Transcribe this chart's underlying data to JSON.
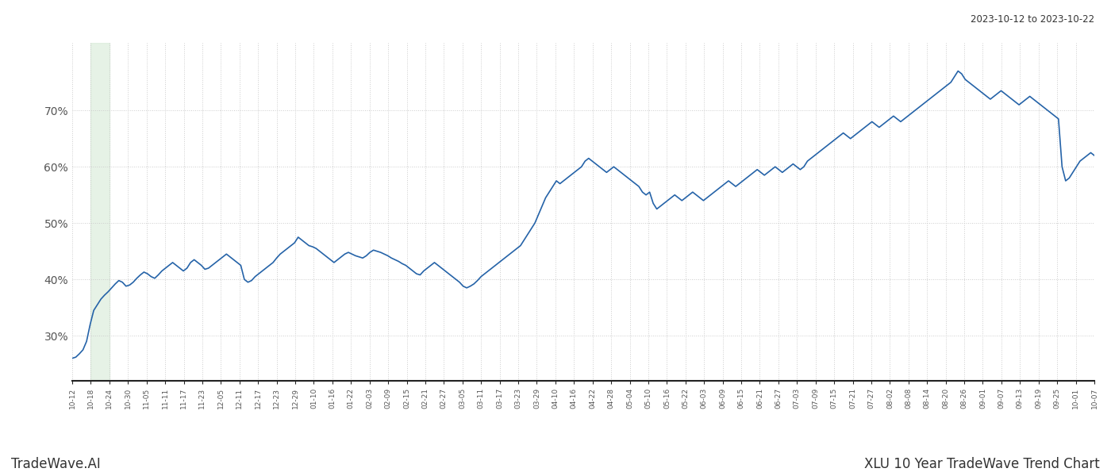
{
  "title_top_right": "2023-10-12 to 2023-10-22",
  "title_bottom_left": "TradeWave.AI",
  "title_bottom_right": "XLU 10 Year TradeWave Trend Chart",
  "line_color": "#2563a8",
  "line_width": 1.2,
  "highlight_color": "#d6ead6",
  "highlight_alpha": 0.6,
  "background_color": "#ffffff",
  "grid_color": "#cccccc",
  "ylim_min": 22,
  "ylim_max": 82,
  "yticks": [
    30,
    40,
    50,
    60,
    70
  ],
  "xlabel_fontsize": 6.5,
  "ylabel_fontsize": 10,
  "x_labels": [
    "10-12",
    "10-18",
    "10-24",
    "10-30",
    "11-05",
    "11-11",
    "11-17",
    "11-23",
    "12-05",
    "12-11",
    "12-17",
    "12-23",
    "12-29",
    "01-10",
    "01-16",
    "01-22",
    "02-03",
    "02-09",
    "02-15",
    "02-21",
    "02-27",
    "03-05",
    "03-11",
    "03-17",
    "03-23",
    "03-29",
    "04-10",
    "04-16",
    "04-22",
    "04-28",
    "05-04",
    "05-10",
    "05-16",
    "05-22",
    "06-03",
    "06-09",
    "06-15",
    "06-21",
    "06-27",
    "07-03",
    "07-09",
    "07-15",
    "07-21",
    "07-27",
    "08-02",
    "08-08",
    "08-14",
    "08-20",
    "08-26",
    "09-01",
    "09-07",
    "09-13",
    "09-19",
    "09-25",
    "10-01",
    "10-07"
  ],
  "highlight_label_start": "10-18",
  "highlight_label_end": "10-24",
  "y_values": [
    26.0,
    26.2,
    26.8,
    27.5,
    29.0,
    32.0,
    34.5,
    35.5,
    36.5,
    37.2,
    37.8,
    38.5,
    39.2,
    39.8,
    39.5,
    38.8,
    39.0,
    39.5,
    40.2,
    40.8,
    41.3,
    41.0,
    40.5,
    40.2,
    40.8,
    41.5,
    42.0,
    42.5,
    43.0,
    42.5,
    42.0,
    41.5,
    42.0,
    43.0,
    43.5,
    43.0,
    42.5,
    41.8,
    42.0,
    42.5,
    43.0,
    43.5,
    44.0,
    44.5,
    44.0,
    43.5,
    43.0,
    42.5,
    40.0,
    39.5,
    39.8,
    40.5,
    41.0,
    41.5,
    42.0,
    42.5,
    43.0,
    43.8,
    44.5,
    45.0,
    45.5,
    46.0,
    46.5,
    47.5,
    47.0,
    46.5,
    46.0,
    45.8,
    45.5,
    45.0,
    44.5,
    44.0,
    43.5,
    43.0,
    43.5,
    44.0,
    44.5,
    44.8,
    44.5,
    44.2,
    44.0,
    43.8,
    44.2,
    44.8,
    45.2,
    45.0,
    44.8,
    44.5,
    44.2,
    43.8,
    43.5,
    43.2,
    42.8,
    42.5,
    42.0,
    41.5,
    41.0,
    40.8,
    41.5,
    42.0,
    42.5,
    43.0,
    42.5,
    42.0,
    41.5,
    41.0,
    40.5,
    40.0,
    39.5,
    38.8,
    38.5,
    38.8,
    39.2,
    39.8,
    40.5,
    41.0,
    41.5,
    42.0,
    42.5,
    43.0,
    43.5,
    44.0,
    44.5,
    45.0,
    45.5,
    46.0,
    47.0,
    48.0,
    49.0,
    50.0,
    51.5,
    53.0,
    54.5,
    55.5,
    56.5,
    57.5,
    57.0,
    57.5,
    58.0,
    58.5,
    59.0,
    59.5,
    60.0,
    61.0,
    61.5,
    61.0,
    60.5,
    60.0,
    59.5,
    59.0,
    59.5,
    60.0,
    59.5,
    59.0,
    58.5,
    58.0,
    57.5,
    57.0,
    56.5,
    55.5,
    55.0,
    55.5,
    53.5,
    52.5,
    53.0,
    53.5,
    54.0,
    54.5,
    55.0,
    54.5,
    54.0,
    54.5,
    55.0,
    55.5,
    55.0,
    54.5,
    54.0,
    54.5,
    55.0,
    55.5,
    56.0,
    56.5,
    57.0,
    57.5,
    57.0,
    56.5,
    57.0,
    57.5,
    58.0,
    58.5,
    59.0,
    59.5,
    59.0,
    58.5,
    59.0,
    59.5,
    60.0,
    59.5,
    59.0,
    59.5,
    60.0,
    60.5,
    60.0,
    59.5,
    60.0,
    61.0,
    61.5,
    62.0,
    62.5,
    63.0,
    63.5,
    64.0,
    64.5,
    65.0,
    65.5,
    66.0,
    65.5,
    65.0,
    65.5,
    66.0,
    66.5,
    67.0,
    67.5,
    68.0,
    67.5,
    67.0,
    67.5,
    68.0,
    68.5,
    69.0,
    68.5,
    68.0,
    68.5,
    69.0,
    69.5,
    70.0,
    70.5,
    71.0,
    71.5,
    72.0,
    72.5,
    73.0,
    73.5,
    74.0,
    74.5,
    75.0,
    76.0,
    77.0,
    76.5,
    75.5,
    75.0,
    74.5,
    74.0,
    73.5,
    73.0,
    72.5,
    72.0,
    72.5,
    73.0,
    73.5,
    73.0,
    72.5,
    72.0,
    71.5,
    71.0,
    71.5,
    72.0,
    72.5,
    72.0,
    71.5,
    71.0,
    70.5,
    70.0,
    69.5,
    69.0,
    68.5,
    60.0,
    57.5,
    58.0,
    59.0,
    60.0,
    61.0,
    61.5,
    62.0,
    62.5,
    62.0
  ]
}
